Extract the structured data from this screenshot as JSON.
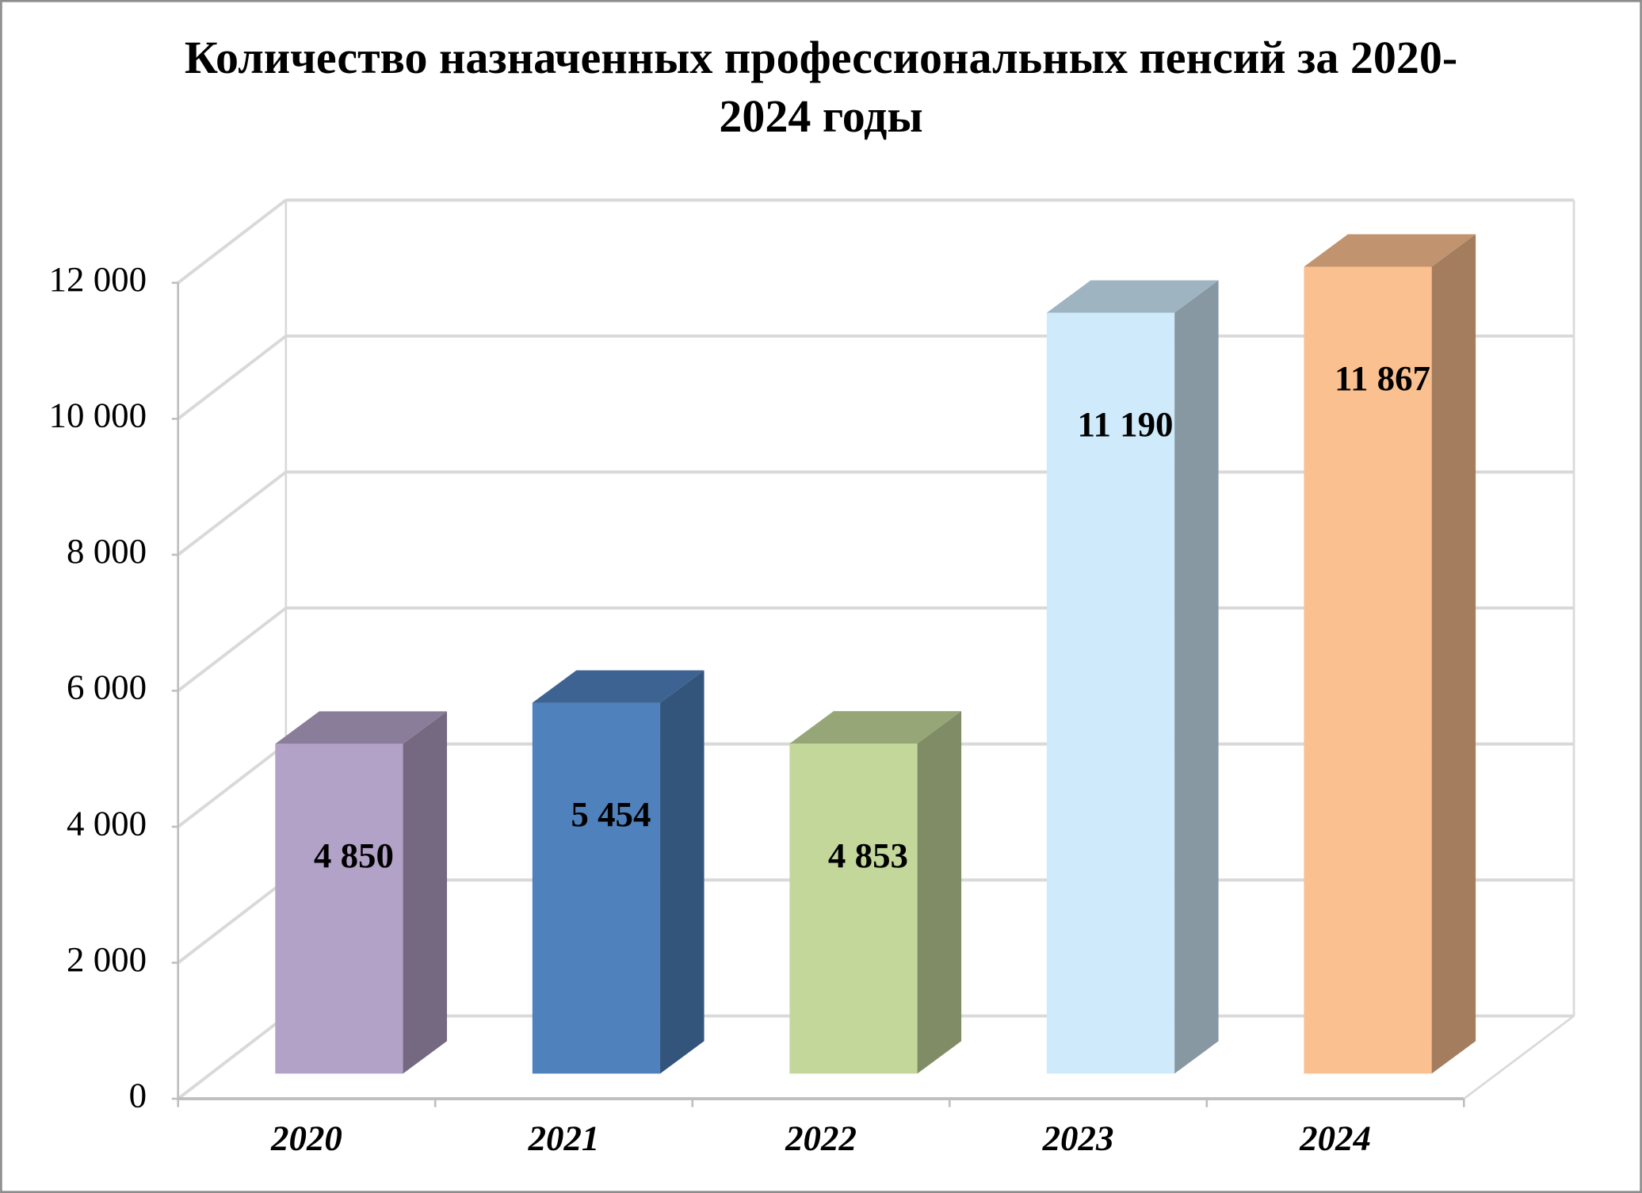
{
  "chart_data": {
    "type": "bar3d",
    "title": "Количество назначенных профессиональных пенсий за 2020-2024 годы",
    "categories": [
      "2020",
      "2021",
      "2022",
      "2023",
      "2024"
    ],
    "values": [
      4850,
      5454,
      4853,
      11190,
      11867
    ],
    "value_labels": [
      "4 850",
      "5 454",
      "4 853",
      "11 190",
      "11 867"
    ],
    "colors": [
      "#b3a2c7",
      "#4f81bd",
      "#c4d79b",
      "#cfeafb",
      "#fac090"
    ],
    "ylim": [
      0,
      12000
    ],
    "yticks": [
      0,
      {
        "value": 2000,
        "label": "2 000"
      },
      {
        "value": 4000,
        "label": "4 000"
      },
      {
        "value": 6000,
        "label": "6 000"
      },
      {
        "value": 8000,
        "label": "8 000"
      },
      {
        "value": 10000,
        "label": "10 000"
      },
      {
        "value": 12000,
        "label": "12 000"
      }
    ],
    "grid": true
  }
}
